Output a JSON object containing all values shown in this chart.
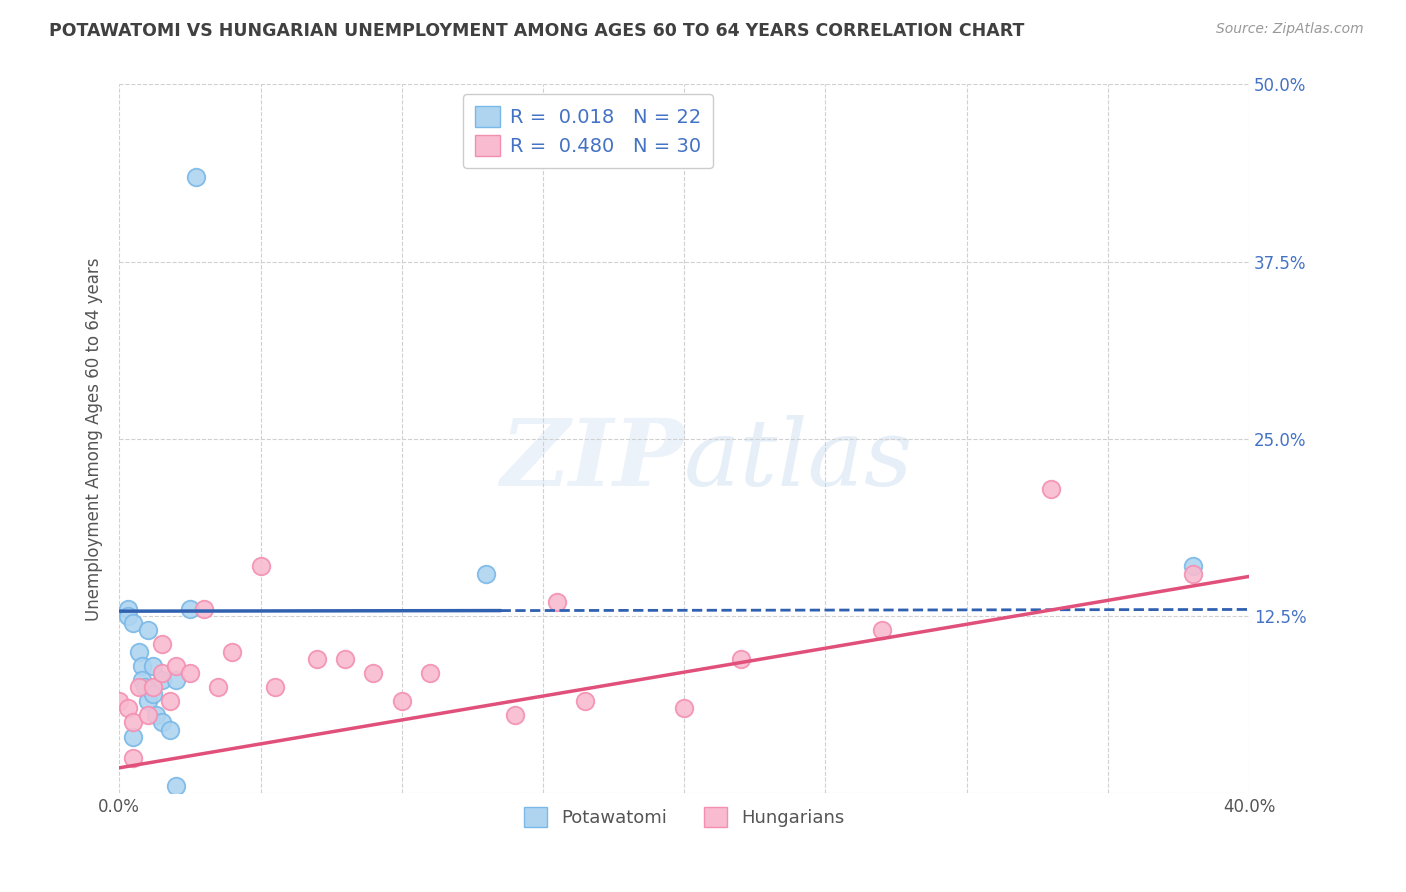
{
  "title": "POTAWATOMI VS HUNGARIAN UNEMPLOYMENT AMONG AGES 60 TO 64 YEARS CORRELATION CHART",
  "source": "Source: ZipAtlas.com",
  "ylabel": "Unemployment Among Ages 60 to 64 years",
  "xlim": [
    0.0,
    0.4
  ],
  "ylim": [
    0.0,
    0.5
  ],
  "xticks": [
    0.0,
    0.05,
    0.1,
    0.15,
    0.2,
    0.25,
    0.3,
    0.35,
    0.4
  ],
  "xticklabels": [
    "0.0%",
    "",
    "",
    "",
    "",
    "",
    "",
    "",
    "40.0%"
  ],
  "yticks": [
    0.0,
    0.125,
    0.25,
    0.375,
    0.5
  ],
  "yticklabels_right": [
    "",
    "12.5%",
    "25.0%",
    "37.5%",
    "50.0%"
  ],
  "blue_color": "#7ab8e8",
  "blue_fill": "#aed4f0",
  "pink_color": "#f48fb1",
  "pink_fill": "#f8bbd0",
  "legend_R_blue": "0.018",
  "legend_N_blue": "22",
  "legend_R_pink": "0.480",
  "legend_N_pink": "30",
  "blue_scatter_x": [
    0.003,
    0.003,
    0.005,
    0.005,
    0.007,
    0.008,
    0.008,
    0.009,
    0.01,
    0.01,
    0.012,
    0.012,
    0.013,
    0.015,
    0.015,
    0.018,
    0.02,
    0.02,
    0.025,
    0.027,
    0.13,
    0.38
  ],
  "blue_scatter_y": [
    0.13,
    0.125,
    0.12,
    0.04,
    0.1,
    0.09,
    0.08,
    0.075,
    0.115,
    0.065,
    0.09,
    0.07,
    0.055,
    0.08,
    0.05,
    0.045,
    0.08,
    0.005,
    0.13,
    0.435,
    0.155,
    0.16
  ],
  "pink_scatter_x": [
    0.0,
    0.003,
    0.005,
    0.005,
    0.007,
    0.01,
    0.012,
    0.015,
    0.015,
    0.018,
    0.02,
    0.025,
    0.03,
    0.035,
    0.04,
    0.05,
    0.055,
    0.07,
    0.08,
    0.09,
    0.1,
    0.11,
    0.14,
    0.155,
    0.165,
    0.2,
    0.22,
    0.27,
    0.33,
    0.38
  ],
  "pink_scatter_y": [
    0.065,
    0.06,
    0.05,
    0.025,
    0.075,
    0.055,
    0.075,
    0.085,
    0.105,
    0.065,
    0.09,
    0.085,
    0.13,
    0.075,
    0.1,
    0.16,
    0.075,
    0.095,
    0.095,
    0.085,
    0.065,
    0.085,
    0.055,
    0.135,
    0.065,
    0.06,
    0.095,
    0.115,
    0.215,
    0.155
  ],
  "blue_line_intercept": 0.1285,
  "blue_line_slope": 0.003,
  "blue_line_solid_end": 0.135,
  "pink_line_intercept": 0.018,
  "pink_line_slope": 0.3375,
  "watermark_zip": "ZIP",
  "watermark_atlas": "atlas",
  "background_color": "#ffffff",
  "grid_color": "#d0d0d0",
  "label_color": "#4472c4",
  "title_color": "#404040"
}
